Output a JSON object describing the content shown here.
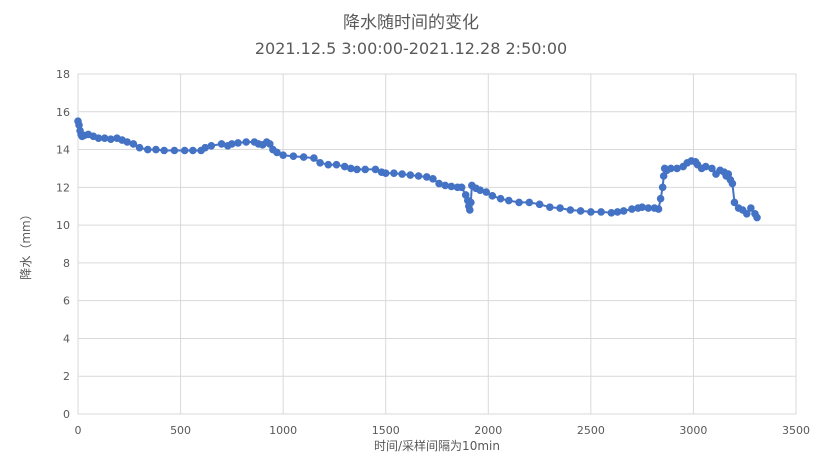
{
  "chart_data": {
    "type": "scatter",
    "title": "降水随时间的变化",
    "subtitle": "2021.12.5 3:00:00-2021.12.28 2:50:00",
    "xlabel": "时间/采样间隔为10min",
    "ylabel": "降水（mm）",
    "xlim": [
      0,
      3500
    ],
    "ylim": [
      0,
      18
    ],
    "x_ticks": [
      "0",
      "500",
      "1000",
      "1500",
      "2000",
      "2500",
      "3000",
      "3500"
    ],
    "y_ticks": [
      "0",
      "2",
      "4",
      "6",
      "8",
      "10",
      "12",
      "14",
      "16",
      "18"
    ],
    "grid": true,
    "legend": "none",
    "color": "#4472c4",
    "series": [
      {
        "x": [
          0,
          5,
          10,
          15,
          20,
          30,
          50,
          75,
          100,
          130,
          160,
          190,
          215,
          240,
          270,
          300,
          340,
          380,
          420,
          470,
          520,
          560,
          600,
          620,
          650,
          700,
          730,
          750,
          780,
          820,
          860,
          880,
          900,
          920,
          935,
          950,
          970,
          1000,
          1050,
          1100,
          1150,
          1180,
          1220,
          1260,
          1300,
          1330,
          1360,
          1400,
          1450,
          1480,
          1500,
          1540,
          1580,
          1620,
          1660,
          1700,
          1730,
          1760,
          1790,
          1820,
          1850,
          1870,
          1890,
          1900,
          1905,
          1910,
          1915,
          1920,
          1940,
          1960,
          1990,
          2020,
          2060,
          2100,
          2150,
          2200,
          2250,
          2300,
          2350,
          2400,
          2450,
          2500,
          2550,
          2600,
          2630,
          2660,
          2700,
          2730,
          2750,
          2780,
          2810,
          2830,
          2840,
          2850,
          2855,
          2860,
          2870,
          2890,
          2920,
          2950,
          2970,
          2990,
          3010,
          3020,
          3040,
          3060,
          3090,
          3110,
          3130,
          3150,
          3160,
          3170,
          3180,
          3190,
          3200,
          3220,
          3240,
          3260,
          3280,
          3300,
          3310
        ],
        "y": [
          15.5,
          15.3,
          15.0,
          14.8,
          14.7,
          14.75,
          14.8,
          14.7,
          14.6,
          14.6,
          14.55,
          14.6,
          14.5,
          14.4,
          14.3,
          14.1,
          14.0,
          14.0,
          13.95,
          13.95,
          13.95,
          13.95,
          13.95,
          14.1,
          14.2,
          14.3,
          14.2,
          14.3,
          14.35,
          14.4,
          14.4,
          14.3,
          14.25,
          14.4,
          14.3,
          14.0,
          13.85,
          13.7,
          13.65,
          13.6,
          13.55,
          13.3,
          13.2,
          13.2,
          13.1,
          13.0,
          12.95,
          12.95,
          12.95,
          12.8,
          12.75,
          12.75,
          12.7,
          12.65,
          12.6,
          12.55,
          12.45,
          12.2,
          12.1,
          12.05,
          12.0,
          12.0,
          11.6,
          11.3,
          11.0,
          10.8,
          11.2,
          12.1,
          11.95,
          11.85,
          11.75,
          11.55,
          11.4,
          11.3,
          11.2,
          11.2,
          11.1,
          10.95,
          10.9,
          10.8,
          10.75,
          10.7,
          10.7,
          10.65,
          10.7,
          10.75,
          10.85,
          10.9,
          10.95,
          10.9,
          10.9,
          10.85,
          11.4,
          12.0,
          12.6,
          13.0,
          12.9,
          13.0,
          13.0,
          13.1,
          13.3,
          13.4,
          13.35,
          13.2,
          13.0,
          13.1,
          13.0,
          12.7,
          12.9,
          12.8,
          12.6,
          12.7,
          12.4,
          12.2,
          11.2,
          10.9,
          10.8,
          10.6,
          10.9,
          10.6,
          10.4
        ]
      }
    ]
  }
}
